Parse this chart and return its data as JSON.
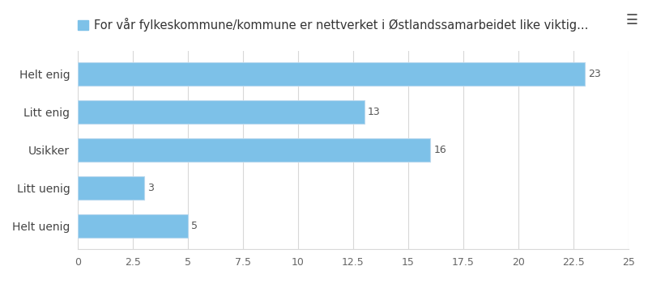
{
  "categories": [
    "Helt enig",
    "Litt enig",
    "Usikker",
    "Litt uenig",
    "Helt uenig"
  ],
  "values": [
    23,
    13,
    16,
    3,
    5
  ],
  "bar_color": "#7DC1E8",
  "bar_edge_color": "#b8d8ee",
  "legend_label": "For vår fylkeskommune/kommune er nettverket i Østlandssamarbeidet like viktig...",
  "xlim": [
    0,
    25
  ],
  "xticks": [
    0,
    2.5,
    5,
    7.5,
    10,
    12.5,
    15,
    17.5,
    20,
    22.5,
    25
  ],
  "xtick_labels": [
    "0",
    "2.5",
    "5",
    "7.5",
    "10",
    "12.5",
    "15",
    "17.5",
    "20",
    "22.5",
    "25"
  ],
  "background_color": "#ffffff",
  "grid_color": "#d8d8d8",
  "label_fontsize": 10,
  "tick_fontsize": 9,
  "value_label_fontsize": 9,
  "value_label_color": "#555555",
  "legend_fontsize": 10.5,
  "menu_icon_color": "#555555",
  "bar_height": 0.62
}
